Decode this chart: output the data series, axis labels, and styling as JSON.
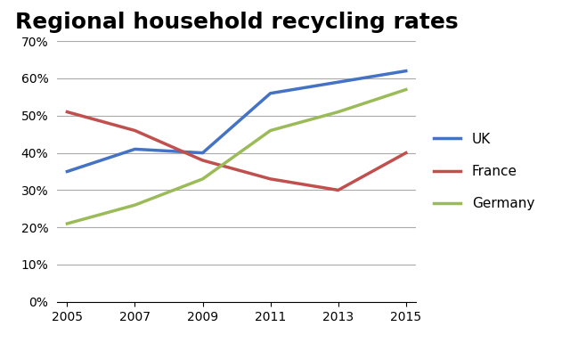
{
  "title": "Regional household recycling rates",
  "title_fontsize": 18,
  "title_fontweight": "bold",
  "years": [
    2005,
    2007,
    2009,
    2011,
    2013,
    2015
  ],
  "series": {
    "UK": {
      "values": [
        35,
        41,
        40,
        56,
        59,
        62
      ],
      "color": "#4472C4",
      "linewidth": 2.5
    },
    "France": {
      "values": [
        51,
        46,
        38,
        33,
        30,
        40
      ],
      "color": "#C0504D",
      "linewidth": 2.5
    },
    "Germany": {
      "values": [
        21,
        26,
        33,
        46,
        51,
        57
      ],
      "color": "#9BBB59",
      "linewidth": 2.5
    }
  },
  "ylim": [
    0,
    70
  ],
  "yticks": [
    0,
    10,
    20,
    30,
    40,
    50,
    60,
    70
  ],
  "xticks": [
    2005,
    2007,
    2009,
    2011,
    2013,
    2015
  ],
  "legend_order": [
    "UK",
    "France",
    "Germany"
  ],
  "legend_fontsize": 11,
  "grid_color": "#AAAAAA",
  "background_color": "#FFFFFF"
}
